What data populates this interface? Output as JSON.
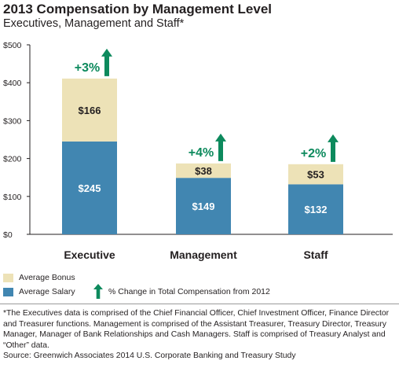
{
  "title": "2013 Compensation by Management Level",
  "subtitle": "Executives, Management and Staff*",
  "colors": {
    "bonus": "#ede2b7",
    "salary": "#4186b1",
    "arrow": "#0d8a5d",
    "axis": "#231f20",
    "grid": "#cccccc"
  },
  "chart_data": {
    "type": "bar",
    "stacked": true,
    "categories": [
      "Executive",
      "Management",
      "Staff"
    ],
    "series": [
      {
        "name": "Average Salary",
        "values": [
          245,
          149,
          132
        ],
        "labels": [
          "$245",
          "$149",
          "$132"
        ]
      },
      {
        "name": "Average Bonus",
        "values": [
          166,
          38,
          53
        ],
        "labels": [
          "$166",
          "$38",
          "$53"
        ]
      }
    ],
    "change_labels": [
      "+3%",
      "+4%",
      "+2%"
    ],
    "yticks": [
      0,
      100,
      200,
      300,
      400,
      500
    ],
    "ytick_labels": [
      "$0",
      "$100",
      "$200",
      "$300",
      "$400",
      "$500"
    ],
    "ylim": [
      0,
      500
    ],
    "legend": [
      "Average Bonus",
      "Average Salary",
      "% Change in Total Compensation from 2012"
    ]
  },
  "footnote": {
    "text": "*The Executives data is comprised of the Chief Financial Officer, Chief Investment Officer, Finance Director and Treasurer functions. Management is comprised of the Assistant Treasurer, Treasury Director, Treasury Manager, Manager of Bank Relationships and Cash Managers. Staff is comprised of Treasury Analyst and “Other” data.",
    "source": "Source: Greenwich Associates 2014 U.S. Corporate Banking and Treasury Study"
  }
}
